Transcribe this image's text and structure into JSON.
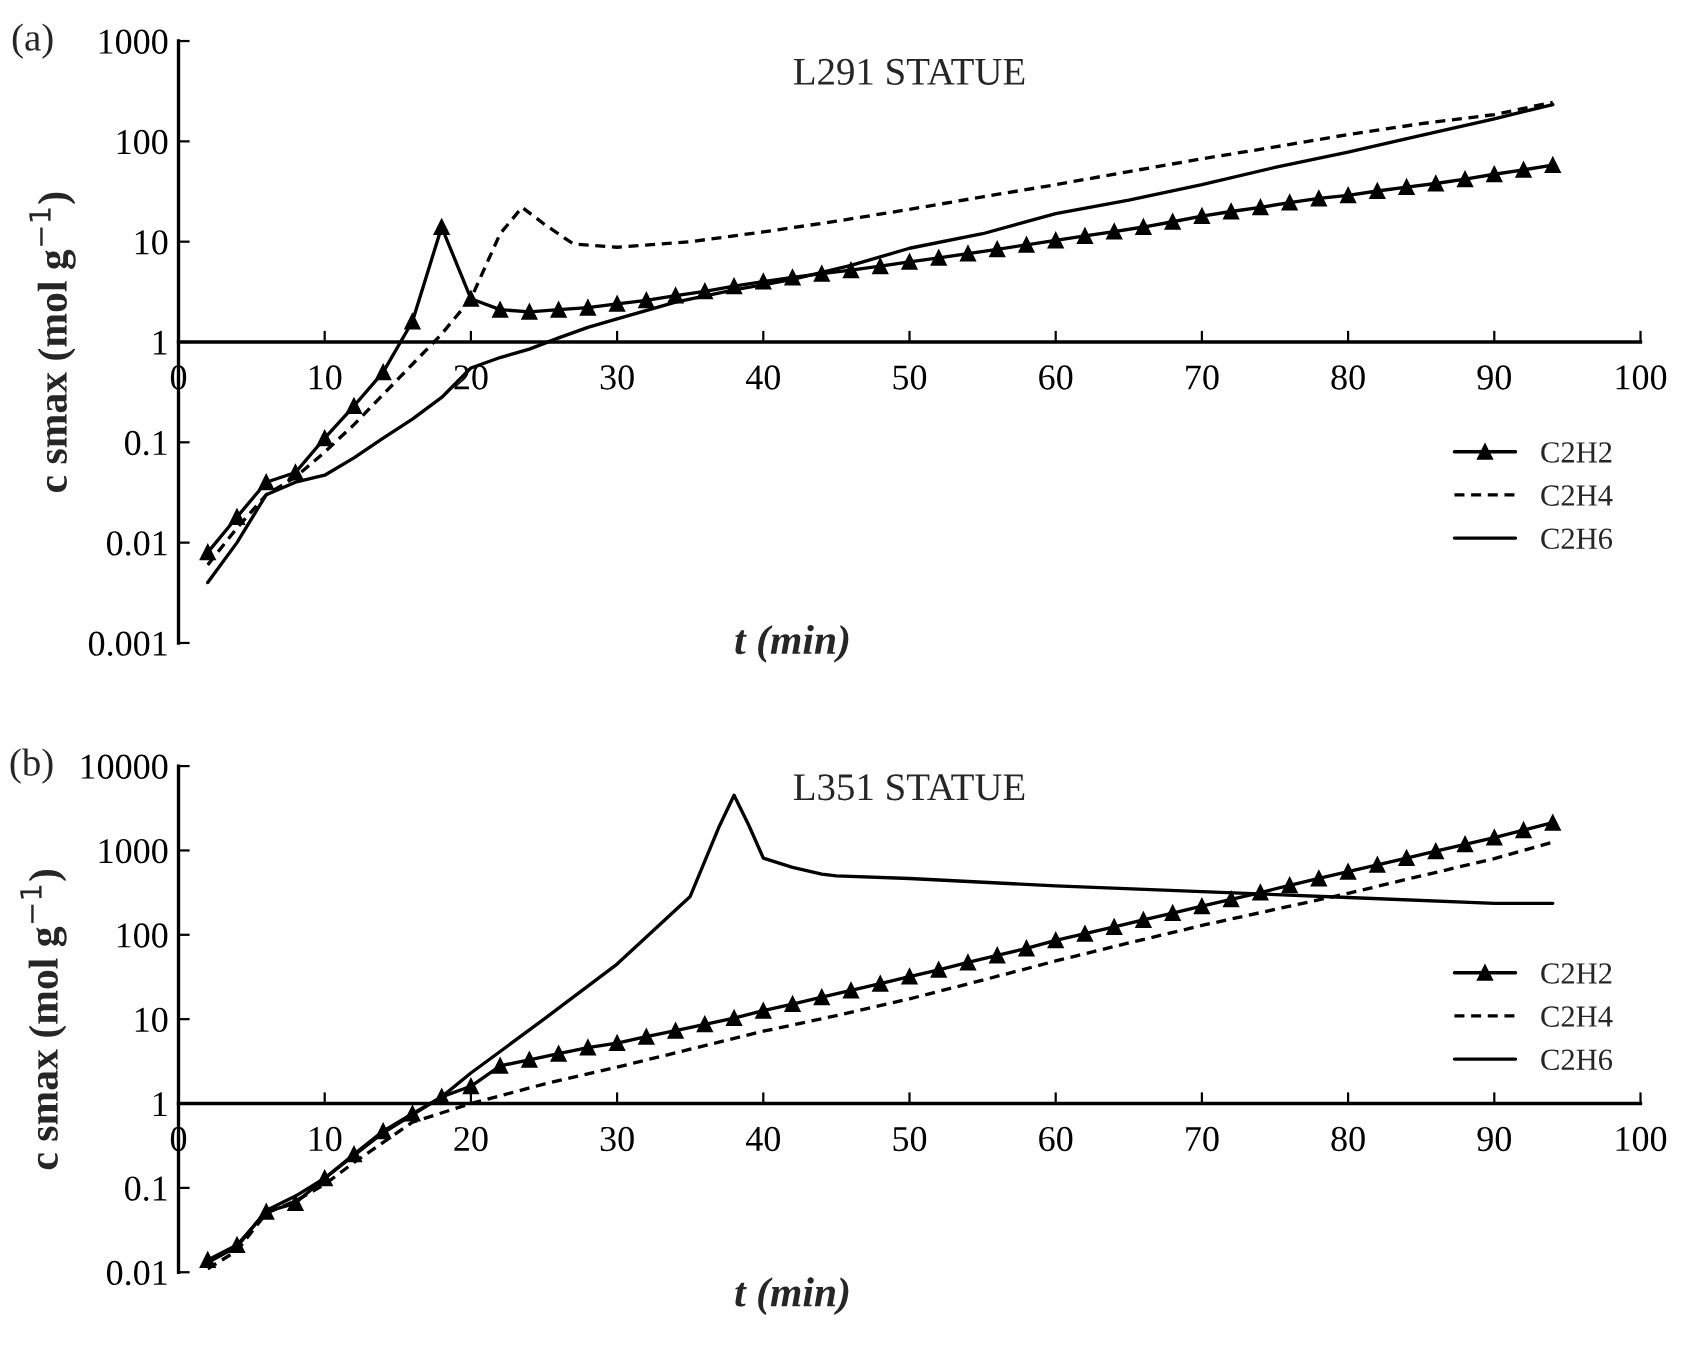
{
  "chart_data": [
    {
      "type": "line",
      "title": "L291 STATUE",
      "xlabel": "t (min)",
      "ylabel": "c smax (mol g$^{−1}$)",
      "annotations": [
        "(a)"
      ],
      "log": "y",
      "grid": false,
      "legend": "bottom right",
      "xlim": [
        0,
        100
      ],
      "xticks": [
        0,
        10,
        20,
        30,
        40,
        50,
        60,
        70,
        80,
        90,
        100
      ],
      "ylim": [
        0.001,
        1000
      ],
      "yticks": [
        0.001,
        0.01,
        0.1,
        1,
        10,
        100,
        1000
      ],
      "series": [
        {
          "name": "C2H2",
          "color": "#000000",
          "marker": "triangle",
          "line_style": "solid",
          "x": [
            2,
            4,
            6,
            8,
            10,
            12,
            14,
            16,
            18,
            20,
            22,
            24,
            26,
            28,
            30,
            32,
            34,
            36,
            38,
            40,
            42,
            44,
            46,
            48,
            50,
            52,
            54,
            56,
            58,
            60,
            62,
            64,
            66,
            68,
            70,
            72,
            74,
            76,
            78,
            80,
            82,
            84,
            86,
            88,
            90,
            92,
            94
          ],
          "values": [
            0.008,
            0.018,
            0.04,
            0.05,
            0.11,
            0.23,
            0.5,
            1.6,
            14,
            2.7,
            2.1,
            2.0,
            2.1,
            2.2,
            2.4,
            2.6,
            2.9,
            3.2,
            3.6,
            4.0,
            4.4,
            4.8,
            5.2,
            5.7,
            6.3,
            6.9,
            7.6,
            8.4,
            9.3,
            10.3,
            11.4,
            12.6,
            14,
            15.8,
            18,
            20,
            22,
            24.5,
            27,
            29,
            32,
            35,
            38,
            42,
            47,
            52,
            58
          ]
        },
        {
          "name": "C2H4",
          "color": "#000000",
          "marker": "none",
          "line_style": "dashed",
          "x": [
            2,
            4,
            6,
            8,
            10,
            12,
            14,
            16,
            18,
            20,
            22,
            23.5,
            25,
            27,
            30,
            35,
            40,
            45,
            50,
            55,
            60,
            65,
            70,
            75,
            80,
            85,
            90,
            94
          ],
          "values": [
            0.006,
            0.014,
            0.03,
            0.045,
            0.08,
            0.15,
            0.3,
            0.6,
            1.2,
            2.7,
            12,
            22,
            15,
            9.5,
            8.8,
            10,
            12.5,
            16,
            21,
            28,
            37,
            50,
            67,
            88,
            117,
            150,
            185,
            245
          ]
        },
        {
          "name": "C2H6",
          "color": "#000000",
          "marker": "none",
          "line_style": "solid",
          "x": [
            2,
            4,
            6,
            8,
            10,
            12,
            14,
            16,
            18,
            20,
            22,
            24,
            26,
            28,
            30,
            34,
            38,
            42,
            46,
            50,
            55,
            60,
            65,
            70,
            75,
            80,
            85,
            90,
            94
          ],
          "values": [
            0.004,
            0.01,
            0.03,
            0.04,
            0.047,
            0.07,
            0.11,
            0.17,
            0.28,
            0.55,
            0.7,
            0.85,
            1.1,
            1.4,
            1.7,
            2.5,
            3.3,
            4.2,
            5.8,
            8.6,
            12,
            19,
            26,
            37,
            55,
            78,
            115,
            168,
            233
          ]
        }
      ]
    },
    {
      "type": "line",
      "title": "L351 STATUE",
      "xlabel": "t (min)",
      "ylabel": "c smax (mol g$^{−1}$)",
      "annotations": [
        "(b)"
      ],
      "log": "y",
      "grid": false,
      "legend": "right",
      "xlim": [
        0,
        100
      ],
      "xticks": [
        0,
        10,
        20,
        30,
        40,
        50,
        60,
        70,
        80,
        90,
        100
      ],
      "ylim": [
        0.01,
        10000
      ],
      "yticks": [
        0.01,
        0.1,
        1,
        10,
        100,
        1000,
        10000
      ],
      "series": [
        {
          "name": "C2H2",
          "color": "#000000",
          "marker": "triangle",
          "line_style": "solid",
          "x": [
            2,
            4,
            6,
            8,
            10,
            12,
            14,
            16,
            18,
            20,
            22,
            24,
            26,
            28,
            30,
            32,
            34,
            36,
            38,
            40,
            42,
            44,
            46,
            48,
            50,
            52,
            54,
            56,
            58,
            60,
            62,
            64,
            66,
            68,
            70,
            72,
            74,
            76,
            78,
            80,
            82,
            84,
            86,
            88,
            90,
            92,
            94
          ],
          "values": [
            0.014,
            0.021,
            0.052,
            0.066,
            0.13,
            0.25,
            0.47,
            0.76,
            1.2,
            1.6,
            2.8,
            3.3,
            3.9,
            4.6,
            5.2,
            6.2,
            7.3,
            8.7,
            10.3,
            12.6,
            15.1,
            18.2,
            21.9,
            26.3,
            32,
            38.5,
            47,
            57,
            69,
            86,
            103,
            124,
            150,
            181,
            218,
            263,
            317,
            386,
            465,
            560,
            676,
            813,
            980,
            1180,
            1420,
            1740,
            2130
          ]
        },
        {
          "name": "C2H4",
          "color": "#000000",
          "marker": "none",
          "line_style": "dashed",
          "x": [
            2,
            4,
            6,
            8,
            10,
            12,
            16,
            20,
            25,
            30,
            35,
            40,
            45,
            50,
            55,
            60,
            65,
            70,
            75,
            80,
            85,
            90,
            94
          ],
          "values": [
            0.011,
            0.018,
            0.05,
            0.07,
            0.11,
            0.2,
            0.6,
            1.0,
            1.7,
            2.7,
            4.4,
            7.2,
            11,
            17.4,
            29,
            49,
            80,
            129,
            200,
            310,
            500,
            800,
            1250
          ]
        },
        {
          "name": "C2H6",
          "color": "#000000",
          "marker": "none",
          "line_style": "solid",
          "x": [
            2,
            4,
            6,
            8,
            10,
            14,
            18,
            20,
            25,
            30,
            35,
            37,
            38,
            39,
            40,
            42,
            44,
            45,
            50,
            60,
            70,
            80,
            90,
            94
          ],
          "values": [
            0.013,
            0.02,
            0.054,
            0.08,
            0.13,
            0.45,
            1.2,
            2.3,
            10,
            45,
            285,
            1950,
            4500,
            2000,
            810,
            630,
            525,
            500,
            465,
            380,
            325,
            277,
            236,
            236
          ]
        }
      ]
    }
  ]
}
